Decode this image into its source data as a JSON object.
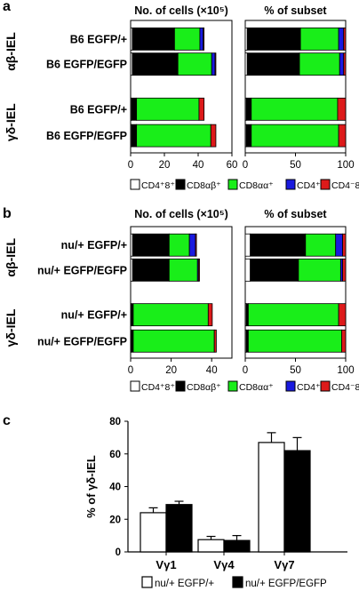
{
  "colors": {
    "cd4cd8": "#ffffff",
    "cd8ab": "#000000",
    "cd8aa": "#19ee19",
    "cd4": "#1a1adf",
    "dn": "#dd1a1a"
  },
  "chart_data": [
    {
      "panel": "a",
      "type": "bar",
      "orientation": "horizontal",
      "stacked": true,
      "title": "No. of cells (×10⁵)",
      "groups": [
        "αβ-IEL",
        "γδ-IEL"
      ],
      "categories": [
        "B6 EGFP/+",
        "B6 EGFP/EGFP",
        "B6 EGFP/+",
        "B6 EGFP/EGFP"
      ],
      "category_group": [
        "αβ-IEL",
        "αβ-IEL",
        "γδ-IEL",
        "γδ-IEL"
      ],
      "xlim": [
        0,
        60
      ],
      "xticks": [
        0,
        20,
        40,
        60
      ],
      "series": [
        {
          "name": "CD4⁺8⁺",
          "values": [
            1,
            1,
            0.5,
            0.5
          ]
        },
        {
          "name": "CD8αβ⁺",
          "values": [
            25,
            27,
            3,
            3
          ]
        },
        {
          "name": "CD8αα⁺",
          "values": [
            15,
            20,
            37,
            44
          ]
        },
        {
          "name": "CD4⁺",
          "values": [
            2,
            2,
            0,
            0
          ]
        },
        {
          "name": "CD4⁻8⁻",
          "values": [
            0.5,
            0.5,
            3,
            3
          ]
        }
      ]
    },
    {
      "panel": "a",
      "type": "bar",
      "orientation": "horizontal",
      "stacked": true,
      "title": "% of subset",
      "categories": [
        "B6 EGFP/+",
        "B6 EGFP/EGFP",
        "B6 EGFP/+",
        "B6 EGFP/EGFP"
      ],
      "xlim": [
        0,
        100
      ],
      "xticks": [
        0,
        50,
        100
      ],
      "series": [
        {
          "name": "CD4⁺8⁺",
          "values": [
            2,
            2,
            1,
            1
          ]
        },
        {
          "name": "CD8αβ⁺",
          "values": [
            53,
            52,
            5,
            5
          ]
        },
        {
          "name": "CD8αα⁺",
          "values": [
            38,
            40,
            86,
            87
          ]
        },
        {
          "name": "CD4⁺",
          "values": [
            5,
            4,
            0,
            0
          ]
        },
        {
          "name": "CD4⁻8⁻",
          "values": [
            2,
            2,
            8,
            7
          ]
        }
      ]
    },
    {
      "panel": "b",
      "type": "bar",
      "orientation": "horizontal",
      "stacked": true,
      "title": "No. of cells (×10⁵)",
      "groups": [
        "αβ-IEL",
        "γδ-IEL"
      ],
      "categories": [
        "nu/+ EGFP/+",
        "nu/+ EGFP/EGFP",
        "nu/+ EGFP/+",
        "nu/+ EGFP/EGFP"
      ],
      "category_group": [
        "αβ-IEL",
        "αβ-IEL",
        "γδ-IEL",
        "γδ-IEL"
      ],
      "xlim": [
        0,
        50
      ],
      "xticks": [
        0,
        20,
        40
      ],
      "series": [
        {
          "name": "CD4⁺8⁺",
          "values": [
            1,
            1,
            0.3,
            0.3
          ]
        },
        {
          "name": "CD8αβ⁺",
          "values": [
            18,
            18,
            1,
            1
          ]
        },
        {
          "name": "CD8αα⁺",
          "values": [
            10,
            14,
            37,
            40
          ]
        },
        {
          "name": "CD4⁺",
          "values": [
            3,
            0.5,
            0,
            0
          ]
        },
        {
          "name": "CD4⁻8⁻",
          "values": [
            0.5,
            0.5,
            2,
            1
          ]
        }
      ]
    },
    {
      "panel": "b",
      "type": "bar",
      "orientation": "horizontal",
      "stacked": true,
      "title": "% of subset",
      "categories": [
        "nu/+ EGFP/+",
        "nu/+ EGFP/EGFP",
        "nu/+ EGFP/+",
        "nu/+ EGFP/EGFP"
      ],
      "xlim": [
        0,
        100
      ],
      "xticks": [
        0,
        50,
        100
      ],
      "series": [
        {
          "name": "CD4⁺8⁺",
          "values": [
            5,
            5,
            1,
            1
          ]
        },
        {
          "name": "CD8αβ⁺",
          "values": [
            55,
            48,
            2,
            2
          ]
        },
        {
          "name": "CD8αα⁺",
          "values": [
            30,
            42,
            90,
            93
          ]
        },
        {
          "name": "CD4⁺",
          "values": [
            7,
            2,
            0,
            0
          ]
        },
        {
          "name": "CD4⁻8⁻",
          "values": [
            3,
            3,
            7,
            4
          ]
        }
      ]
    },
    {
      "panel": "c",
      "type": "bar",
      "categories": [
        "Vγ1",
        "Vγ4",
        "Vγ7"
      ],
      "ylabel": "% of γδ-IEL",
      "ylim": [
        0,
        80
      ],
      "yticks": [
        0,
        20,
        40,
        60,
        80
      ],
      "series": [
        {
          "name": "nu/+ EGFP/+",
          "values": [
            24,
            7.5,
            67
          ],
          "errors": [
            3,
            2,
            6
          ]
        },
        {
          "name": "nu/+ EGFP/EGFP",
          "values": [
            29,
            7,
            62
          ],
          "errors": [
            2,
            3,
            8
          ]
        }
      ]
    }
  ],
  "panel_labels": [
    "a",
    "b",
    "c"
  ]
}
